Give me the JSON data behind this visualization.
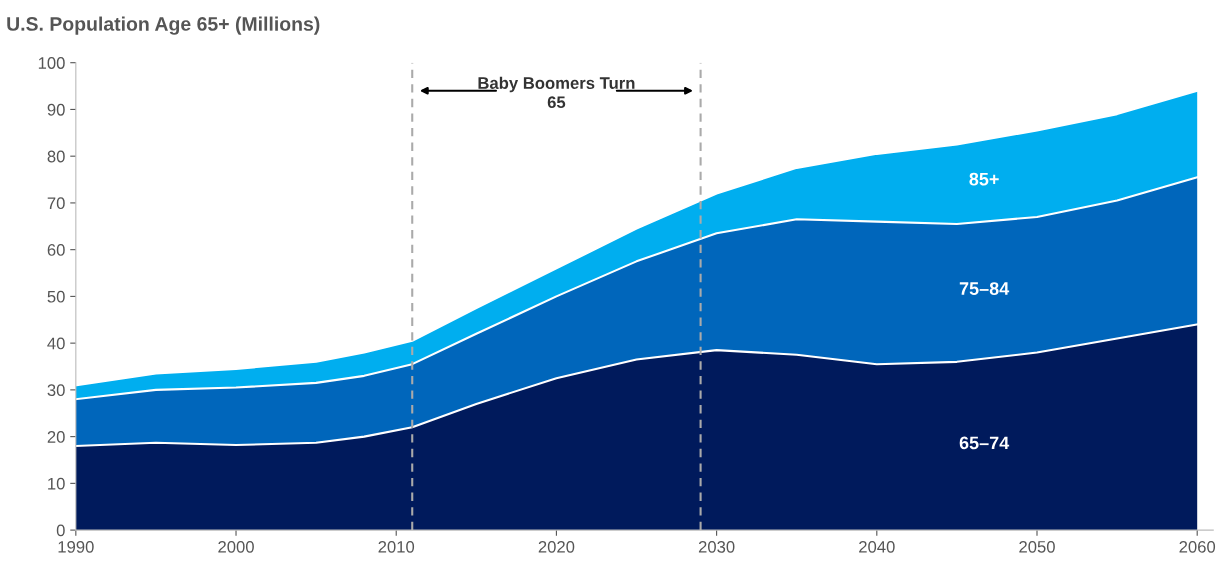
{
  "chart_data": {
    "type": "area",
    "title": "U.S. Population Age 65+ (Millions)",
    "stacked": true,
    "x": [
      1990,
      1995,
      2000,
      2005,
      2008,
      2011,
      2015,
      2020,
      2025,
      2030,
      2035,
      2040,
      2045,
      2050,
      2055,
      2060
    ],
    "series": [
      {
        "name": "65–74",
        "color": "#001a5c",
        "values": [
          18,
          18.7,
          18.2,
          18.7,
          20,
          22,
          27,
          32.5,
          36.5,
          38.5,
          37.5,
          35.5,
          36,
          38,
          41,
          44
        ]
      },
      {
        "name": "75–84",
        "color": "#0066bb",
        "values": [
          10,
          11.3,
          12.3,
          12.8,
          13,
          13.5,
          15,
          17.5,
          21,
          25,
          29,
          30.5,
          29.5,
          29,
          29.5,
          31.5
        ]
      },
      {
        "name": "85+",
        "color": "#00aeef",
        "values": [
          3,
          3.5,
          4,
          4.5,
          5,
          5,
          5.5,
          6,
          7,
          8.5,
          11,
          14.5,
          17,
          18.5,
          18.5,
          18.5
        ]
      }
    ],
    "xlim": [
      1990,
      2061
    ],
    "xticks": [
      1990,
      2000,
      2010,
      2020,
      2030,
      2040,
      2050,
      2060
    ],
    "ylim": [
      0,
      100
    ],
    "yticks": [
      0,
      10,
      20,
      30,
      40,
      50,
      60,
      70,
      80,
      90,
      100
    ],
    "grid": false,
    "legend": false,
    "ref_lines": [
      {
        "axis": "x",
        "value": 2011,
        "color": "#aaaaaa",
        "line_style": "dashed"
      },
      {
        "axis": "x",
        "value": 2029,
        "color": "#aaaaaa",
        "line_style": "dashed"
      }
    ],
    "annotations": [
      "Baby Boomers Turn\n65"
    ]
  }
}
